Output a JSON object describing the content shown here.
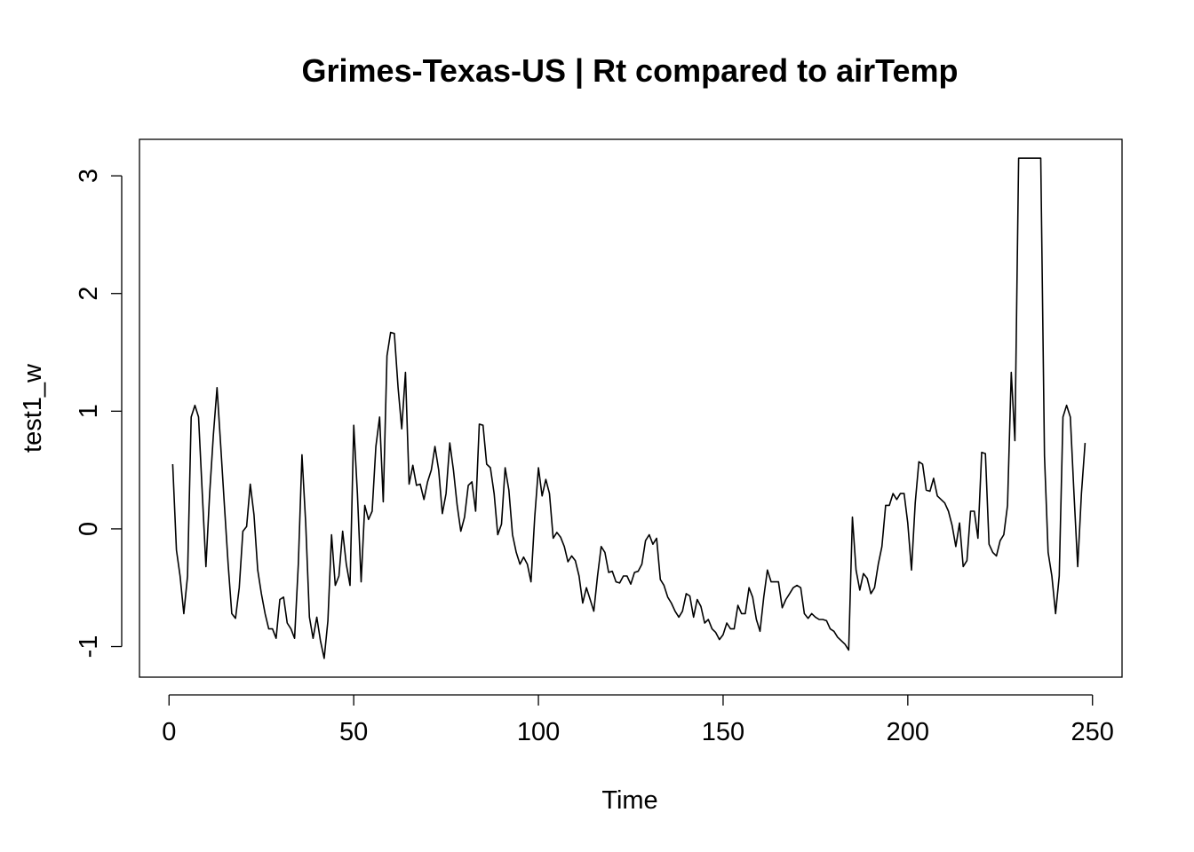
{
  "chart_data": {
    "type": "line",
    "title": "Grimes-Texas-US | Rt compared to airTemp",
    "xlabel": "Time",
    "ylabel": "test1_w",
    "xlim": [
      -8,
      258
    ],
    "ylim": [
      -1.26,
      3.31
    ],
    "x_ticks": [
      0,
      50,
      100,
      150,
      200,
      250
    ],
    "y_ticks": [
      -1,
      0,
      1,
      2,
      3
    ],
    "x_tick_labels": [
      "0",
      "50",
      "100",
      "150",
      "200",
      "250"
    ],
    "y_tick_labels": [
      "-1",
      "0",
      "1",
      "2",
      "3"
    ],
    "grid": false,
    "legend": "none",
    "series": [
      {
        "color": "#000000",
        "x": [
          1,
          2,
          3,
          4,
          5,
          6,
          7,
          8,
          9,
          10,
          11,
          12,
          13,
          14,
          15,
          16,
          17,
          18,
          19,
          20,
          21,
          22,
          23,
          24,
          25,
          26,
          27,
          28,
          29,
          30,
          31,
          32,
          33,
          34,
          35,
          36,
          37,
          38,
          39,
          40,
          41,
          42,
          43,
          44,
          45,
          46,
          47,
          48,
          49,
          50,
          51,
          52,
          53,
          54,
          55,
          56,
          57,
          58,
          59,
          60,
          61,
          62,
          63,
          64,
          65,
          66,
          67,
          68,
          69,
          70,
          71,
          72,
          73,
          74,
          75,
          76,
          77,
          78,
          79,
          80,
          81,
          82,
          83,
          84,
          85,
          86,
          87,
          88,
          89,
          90,
          91,
          92,
          93,
          94,
          95,
          96,
          97,
          98,
          99,
          100,
          101,
          102,
          103,
          104,
          105,
          106,
          107,
          108,
          109,
          110,
          111,
          112,
          113,
          114,
          115,
          116,
          117,
          118,
          119,
          120,
          121,
          122,
          123,
          124,
          125,
          126,
          127,
          128,
          129,
          130,
          131,
          132,
          133,
          134,
          135,
          136,
          137,
          138,
          139,
          140,
          141,
          142,
          143,
          144,
          145,
          146,
          147,
          148,
          149,
          150,
          151,
          152,
          153,
          154,
          155,
          156,
          157,
          158,
          159,
          160,
          161,
          162,
          163,
          164,
          165,
          166,
          167,
          168,
          169,
          170,
          171,
          172,
          173,
          174,
          175,
          176,
          177,
          178,
          179,
          180,
          181,
          182,
          183,
          184,
          185,
          186,
          187,
          188,
          189,
          190,
          191,
          192,
          193,
          194,
          195,
          196,
          197,
          198,
          199,
          200,
          201,
          202,
          203,
          204,
          205,
          206,
          207,
          208,
          209,
          210,
          211,
          212,
          213,
          214,
          215,
          216,
          217,
          218,
          219,
          220,
          221,
          222,
          223,
          224,
          225,
          226,
          227,
          228,
          229,
          230,
          231,
          232,
          233,
          234,
          235,
          236,
          237,
          238,
          239,
          240,
          241,
          242,
          243,
          244,
          245,
          246,
          247,
          248
        ],
        "y": [
          0.55,
          -0.18,
          -0.4,
          -0.72,
          -0.4,
          0.95,
          1.05,
          0.95,
          0.3,
          -0.32,
          0.3,
          0.8,
          1.2,
          0.7,
          0.2,
          -0.3,
          -0.72,
          -0.76,
          -0.5,
          -0.02,
          0.02,
          0.38,
          0.12,
          -0.35,
          -0.55,
          -0.72,
          -0.85,
          -0.85,
          -0.93,
          -0.6,
          -0.58,
          -0.8,
          -0.85,
          -0.93,
          -0.3,
          0.63,
          0.05,
          -0.75,
          -0.93,
          -0.75,
          -0.95,
          -1.1,
          -0.78,
          -0.05,
          -0.48,
          -0.4,
          -0.02,
          -0.3,
          -0.48,
          0.88,
          0.3,
          -0.45,
          0.2,
          0.08,
          0.15,
          0.7,
          0.95,
          0.23,
          1.47,
          1.67,
          1.66,
          1.2,
          0.85,
          1.33,
          0.38,
          0.54,
          0.37,
          0.38,
          0.25,
          0.4,
          0.5,
          0.7,
          0.5,
          0.13,
          0.3,
          0.73,
          0.5,
          0.2,
          -0.02,
          0.1,
          0.37,
          0.4,
          0.15,
          0.89,
          0.88,
          0.55,
          0.52,
          0.3,
          -0.05,
          0.04,
          0.52,
          0.33,
          -0.05,
          -0.2,
          -0.3,
          -0.24,
          -0.3,
          -0.45,
          0.1,
          0.52,
          0.28,
          0.42,
          0.3,
          -0.08,
          -0.03,
          -0.07,
          -0.15,
          -0.28,
          -0.23,
          -0.27,
          -0.4,
          -0.63,
          -0.5,
          -0.6,
          -0.7,
          -0.4,
          -0.15,
          -0.2,
          -0.37,
          -0.36,
          -0.45,
          -0.46,
          -0.4,
          -0.4,
          -0.47,
          -0.37,
          -0.36,
          -0.3,
          -0.1,
          -0.05,
          -0.13,
          -0.08,
          -0.43,
          -0.48,
          -0.58,
          -0.63,
          -0.7,
          -0.75,
          -0.7,
          -0.55,
          -0.57,
          -0.75,
          -0.6,
          -0.66,
          -0.8,
          -0.77,
          -0.85,
          -0.88,
          -0.94,
          -0.9,
          -0.8,
          -0.85,
          -0.85,
          -0.65,
          -0.72,
          -0.72,
          -0.5,
          -0.58,
          -0.77,
          -0.87,
          -0.58,
          -0.35,
          -0.45,
          -0.45,
          -0.45,
          -0.67,
          -0.6,
          -0.55,
          -0.5,
          -0.48,
          -0.5,
          -0.72,
          -0.76,
          -0.72,
          -0.75,
          -0.77,
          -0.77,
          -0.78,
          -0.85,
          -0.87,
          -0.92,
          -0.95,
          -0.98,
          -1.03,
          0.1,
          -0.35,
          -0.52,
          -0.38,
          -0.42,
          -0.55,
          -0.5,
          -0.3,
          -0.15,
          0.2,
          0.2,
          0.3,
          0.25,
          0.3,
          0.3,
          0.05,
          -0.35,
          0.22,
          0.57,
          0.55,
          0.33,
          0.32,
          0.43,
          0.28,
          0.25,
          0.22,
          0.15,
          0.03,
          -0.15,
          0.05,
          -0.32,
          -0.27,
          0.15,
          0.15,
          -0.08,
          0.65,
          0.64,
          -0.13,
          -0.2,
          -0.23,
          -0.1,
          -0.05,
          0.2,
          1.33,
          0.75,
          3.15,
          3.15,
          3.15,
          3.15,
          3.15,
          3.15,
          3.15,
          0.62,
          -0.2,
          -0.4,
          -0.72,
          -0.4,
          0.95,
          1.05,
          0.95,
          0.3,
          -0.32,
          0.3,
          0.73
        ]
      }
    ]
  }
}
